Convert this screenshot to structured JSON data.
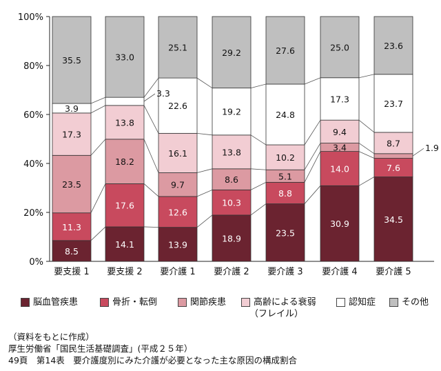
{
  "chart_data": {
    "type": "bar",
    "stacked": true,
    "categories": [
      "要支援 1",
      "要支援 2",
      "要介護 1",
      "要介護 2",
      "要介護 3",
      "要介護 4",
      "要介護 5"
    ],
    "y_ticks": [
      "0%",
      "20%",
      "40%",
      "60%",
      "80%",
      "100%"
    ],
    "ylim": [
      0,
      100
    ],
    "series": [
      {
        "name": "脳血管疾患",
        "color": "#6b2330",
        "label_color": "#ffffff",
        "values": [
          8.5,
          14.1,
          13.9,
          18.9,
          23.5,
          30.9,
          34.5
        ],
        "labels": [
          "8.5",
          "14.1",
          "13.9",
          "18.9",
          "23.5",
          "30.9",
          "34.5"
        ]
      },
      {
        "name": "骨折・転倒",
        "color": "#c84a5e",
        "label_color": "#ffffff",
        "values": [
          11.3,
          17.6,
          12.6,
          10.3,
          8.8,
          14.0,
          7.6
        ],
        "labels": [
          "11.3",
          "17.6",
          "12.6",
          "10.3",
          "8.8",
          "14.0",
          "7.6"
        ]
      },
      {
        "name": "関節疾患",
        "color": "#dc9aa2",
        "label_color": "#111111",
        "values": [
          23.5,
          18.2,
          9.7,
          8.6,
          5.1,
          3.4,
          1.9
        ],
        "labels": [
          "23.5",
          "18.2",
          "9.7",
          "8.6",
          "5.1",
          "3.4",
          "1.9"
        ]
      },
      {
        "name": "高齢による衰弱",
        "name_line2": "（フレイル）",
        "color": "#f2cdd3",
        "label_color": "#111111",
        "values": [
          17.3,
          13.8,
          16.1,
          13.8,
          10.2,
          9.4,
          8.7
        ],
        "labels": [
          "17.3",
          "13.8",
          "16.1",
          "13.8",
          "10.2",
          "9.4",
          "8.7"
        ]
      },
      {
        "name": "認知症",
        "color": "#ffffff",
        "label_color": "#111111",
        "values": [
          3.9,
          3.3,
          22.6,
          19.2,
          24.8,
          17.3,
          23.7
        ],
        "labels": [
          "3.9",
          "3.3",
          "22.6",
          "19.2",
          "24.8",
          "17.3",
          "23.7"
        ]
      },
      {
        "name": "その他",
        "color": "#bfbfbf",
        "label_color": "#111111",
        "values": [
          35.5,
          33.0,
          25.1,
          29.2,
          27.6,
          25.0,
          23.6
        ],
        "labels": [
          "35.5",
          "33.0",
          "25.1",
          "29.2",
          "27.6",
          "25.0",
          "23.6"
        ]
      }
    ],
    "connector_lines": true,
    "grid": false,
    "legend_position": "bottom"
  },
  "footer": {
    "line1": "（資料をもとに作成）",
    "line2": "厚生労働省「国民生活基礎調査」(平成２５年）",
    "line3": "49頁　第14表　要介護度別にみた介護が必要となった主な原因の構成割合"
  }
}
